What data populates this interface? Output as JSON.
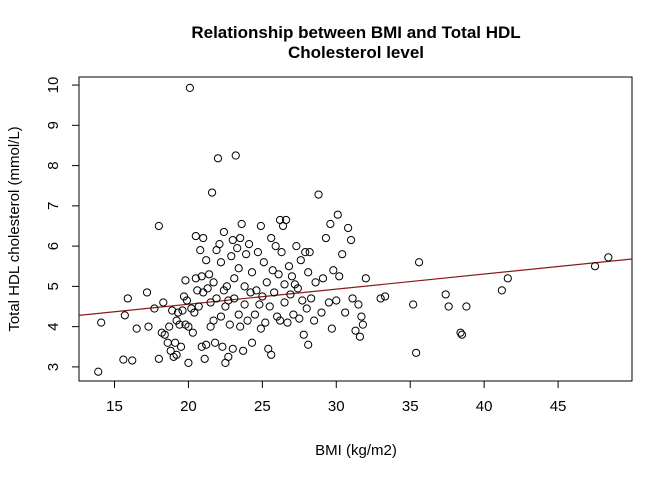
{
  "chart_data": {
    "type": "scatter",
    "title": "Relationship between BMI and Total HDL",
    "subtitle": "Cholesterol level",
    "xlabel": "BMI (kg/m2)",
    "ylabel": "Total HDL cholesterol (mmol/L)",
    "xlim": [
      12.6,
      50.0
    ],
    "ylim": [
      2.65,
      10.2
    ],
    "xticks": [
      15,
      20,
      25,
      30,
      35,
      40,
      45
    ],
    "yticks": [
      3,
      4,
      5,
      6,
      7,
      8,
      9,
      10
    ],
    "xtick_labels": [
      "15",
      "20",
      "25",
      "30",
      "35",
      "40",
      "45"
    ],
    "ytick_labels": [
      "3",
      "4",
      "5",
      "6",
      "7",
      "8",
      "9",
      "10"
    ],
    "grid": false,
    "legend": "none",
    "colors": {
      "points": "#000000",
      "fit_line": "#8b1a1a"
    },
    "fit_line": {
      "x": [
        12.6,
        50.0
      ],
      "y": [
        4.28,
        5.68
      ]
    },
    "points": [
      [
        13.9,
        2.88
      ],
      [
        14.1,
        4.1
      ],
      [
        15.6,
        3.18
      ],
      [
        15.7,
        4.28
      ],
      [
        15.9,
        4.7
      ],
      [
        16.2,
        3.16
      ],
      [
        16.5,
        3.95
      ],
      [
        17.2,
        4.85
      ],
      [
        17.3,
        4.0
      ],
      [
        17.7,
        4.45
      ],
      [
        18.0,
        3.2
      ],
      [
        18.0,
        6.5
      ],
      [
        18.2,
        3.85
      ],
      [
        18.3,
        4.6
      ],
      [
        18.4,
        3.8
      ],
      [
        18.6,
        3.6
      ],
      [
        18.7,
        4.0
      ],
      [
        18.8,
        3.4
      ],
      [
        18.9,
        4.4
      ],
      [
        19.0,
        3.25
      ],
      [
        19.1,
        3.6
      ],
      [
        19.2,
        3.3
      ],
      [
        19.2,
        4.15
      ],
      [
        19.3,
        4.35
      ],
      [
        19.4,
        4.05
      ],
      [
        19.5,
        3.5
      ],
      [
        19.6,
        4.4
      ],
      [
        19.7,
        4.75
      ],
      [
        19.8,
        5.15
      ],
      [
        19.8,
        4.05
      ],
      [
        19.9,
        4.65
      ],
      [
        20.0,
        3.1
      ],
      [
        20.0,
        4.0
      ],
      [
        20.1,
        9.93
      ],
      [
        20.2,
        4.45
      ],
      [
        20.3,
        3.85
      ],
      [
        20.4,
        4.35
      ],
      [
        20.5,
        6.25
      ],
      [
        20.5,
        5.2
      ],
      [
        20.6,
        4.9
      ],
      [
        20.7,
        4.5
      ],
      [
        20.8,
        5.9
      ],
      [
        20.9,
        3.5
      ],
      [
        20.9,
        5.25
      ],
      [
        21.0,
        4.85
      ],
      [
        21.0,
        6.2
      ],
      [
        21.1,
        3.2
      ],
      [
        21.2,
        3.55
      ],
      [
        21.2,
        5.65
      ],
      [
        21.3,
        4.95
      ],
      [
        21.4,
        5.3
      ],
      [
        21.5,
        4.0
      ],
      [
        21.5,
        4.6
      ],
      [
        21.6,
        7.33
      ],
      [
        21.7,
        4.15
      ],
      [
        21.7,
        5.1
      ],
      [
        21.8,
        3.6
      ],
      [
        21.9,
        4.7
      ],
      [
        21.9,
        5.9
      ],
      [
        22.0,
        8.18
      ],
      [
        22.1,
        6.05
      ],
      [
        22.2,
        4.25
      ],
      [
        22.2,
        5.6
      ],
      [
        22.3,
        3.5
      ],
      [
        22.4,
        6.35
      ],
      [
        22.4,
        4.9
      ],
      [
        22.5,
        3.1
      ],
      [
        22.5,
        4.5
      ],
      [
        22.6,
        5.0
      ],
      [
        22.7,
        3.25
      ],
      [
        22.7,
        4.65
      ],
      [
        22.8,
        4.05
      ],
      [
        22.9,
        5.75
      ],
      [
        23.0,
        3.45
      ],
      [
        23.0,
        6.15
      ],
      [
        23.1,
        4.7
      ],
      [
        23.1,
        5.2
      ],
      [
        23.2,
        8.25
      ],
      [
        23.3,
        5.95
      ],
      [
        23.4,
        4.3
      ],
      [
        23.4,
        5.45
      ],
      [
        23.5,
        4.0
      ],
      [
        23.5,
        6.2
      ],
      [
        23.6,
        6.55
      ],
      [
        23.7,
        3.4
      ],
      [
        23.8,
        4.55
      ],
      [
        23.8,
        5.0
      ],
      [
        23.9,
        5.8
      ],
      [
        24.0,
        4.15
      ],
      [
        24.1,
        6.05
      ],
      [
        24.2,
        4.85
      ],
      [
        24.3,
        3.6
      ],
      [
        24.3,
        5.35
      ],
      [
        24.5,
        4.3
      ],
      [
        24.6,
        4.9
      ],
      [
        24.7,
        5.85
      ],
      [
        24.8,
        4.55
      ],
      [
        24.9,
        6.5
      ],
      [
        24.9,
        3.95
      ],
      [
        25.0,
        4.75
      ],
      [
        25.1,
        5.6
      ],
      [
        25.2,
        4.1
      ],
      [
        25.3,
        5.1
      ],
      [
        25.4,
        3.45
      ],
      [
        25.5,
        4.5
      ],
      [
        25.6,
        6.2
      ],
      [
        25.6,
        3.3
      ],
      [
        25.7,
        5.4
      ],
      [
        25.8,
        4.85
      ],
      [
        25.9,
        6.0
      ],
      [
        26.0,
        4.25
      ],
      [
        26.1,
        5.3
      ],
      [
        26.2,
        6.65
      ],
      [
        26.2,
        4.15
      ],
      [
        26.3,
        5.85
      ],
      [
        26.4,
        6.5
      ],
      [
        26.5,
        4.6
      ],
      [
        26.5,
        5.05
      ],
      [
        26.6,
        6.65
      ],
      [
        26.7,
        4.1
      ],
      [
        26.8,
        5.5
      ],
      [
        26.9,
        4.8
      ],
      [
        27.0,
        5.25
      ],
      [
        27.1,
        4.3
      ],
      [
        27.2,
        5.05
      ],
      [
        27.3,
        6.0
      ],
      [
        27.4,
        4.95
      ],
      [
        27.5,
        4.2
      ],
      [
        27.6,
        5.65
      ],
      [
        27.7,
        4.65
      ],
      [
        27.8,
        3.8
      ],
      [
        27.9,
        5.85
      ],
      [
        28.0,
        4.45
      ],
      [
        28.1,
        3.55
      ],
      [
        28.1,
        5.35
      ],
      [
        28.2,
        5.85
      ],
      [
        28.3,
        4.7
      ],
      [
        28.5,
        4.15
      ],
      [
        28.6,
        5.1
      ],
      [
        28.8,
        7.28
      ],
      [
        29.0,
        4.35
      ],
      [
        29.1,
        5.2
      ],
      [
        29.3,
        6.2
      ],
      [
        29.5,
        4.6
      ],
      [
        29.6,
        6.55
      ],
      [
        29.7,
        3.95
      ],
      [
        29.8,
        5.4
      ],
      [
        30.0,
        4.65
      ],
      [
        30.1,
        6.78
      ],
      [
        30.2,
        5.25
      ],
      [
        30.4,
        5.8
      ],
      [
        30.6,
        4.35
      ],
      [
        30.8,
        6.45
      ],
      [
        31.0,
        6.15
      ],
      [
        31.1,
        4.7
      ],
      [
        31.3,
        3.9
      ],
      [
        31.5,
        4.55
      ],
      [
        31.6,
        3.75
      ],
      [
        31.7,
        4.25
      ],
      [
        31.8,
        4.05
      ],
      [
        32.0,
        5.2
      ],
      [
        33.0,
        4.7
      ],
      [
        33.3,
        4.75
      ],
      [
        35.2,
        4.55
      ],
      [
        35.4,
        3.35
      ],
      [
        35.6,
        5.6
      ],
      [
        37.4,
        4.8
      ],
      [
        37.6,
        4.5
      ],
      [
        38.4,
        3.85
      ],
      [
        38.5,
        3.8
      ],
      [
        38.8,
        4.5
      ],
      [
        41.2,
        4.9
      ],
      [
        41.6,
        5.2
      ],
      [
        47.5,
        5.5
      ],
      [
        48.4,
        5.72
      ]
    ]
  }
}
